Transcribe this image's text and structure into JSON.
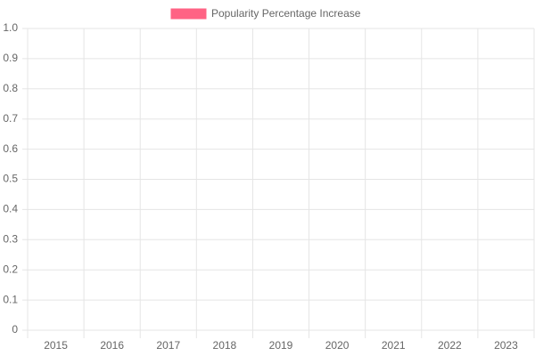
{
  "chart_data": {
    "type": "bar",
    "categories": [
      "2015",
      "2016",
      "2017",
      "2018",
      "2019",
      "2020",
      "2021",
      "2022",
      "2023"
    ],
    "series": [
      {
        "name": "Popularity Percentage Increase",
        "color": "#ff6384",
        "values": [
          0,
          0,
          0,
          0,
          0,
          0,
          0,
          0,
          0
        ]
      }
    ],
    "ylim": [
      0,
      1
    ],
    "yticks": [
      0,
      0.1,
      0.2,
      0.3,
      0.4,
      0.5,
      0.6,
      0.7,
      0.8,
      0.9,
      {
        "value": 1,
        "label": "1.0"
      }
    ],
    "grid": true,
    "legend": "top"
  }
}
